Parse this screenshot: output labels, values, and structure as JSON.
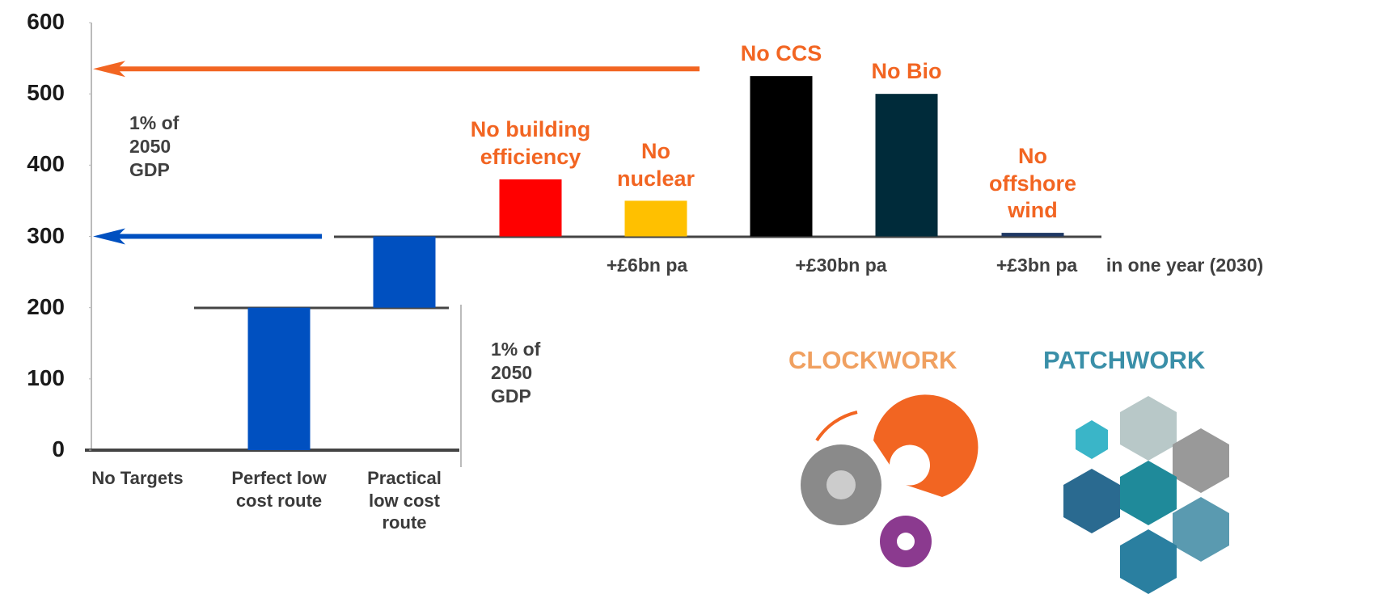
{
  "chart_data": {
    "type": "bar",
    "categories": [
      "No Targets",
      "Perfect low cost route",
      "Practical low cost route",
      "No building efficiency",
      "No nuclear",
      "No CCS",
      "No Bio",
      "No offshore wind"
    ],
    "bases": [
      0,
      0,
      200,
      300,
      300,
      300,
      300,
      300
    ],
    "values": [
      0,
      200,
      100,
      80,
      50,
      225,
      200,
      5
    ],
    "colors": [
      "#0050c0",
      "#0050c0",
      "#0050c0",
      "#ff0000",
      "#ffc000",
      "#000000",
      "#002b3a",
      "#1f3864"
    ],
    "ylim": [
      0,
      600
    ],
    "yticks": [
      0,
      100,
      200,
      300,
      400,
      500,
      600
    ],
    "arrows": [
      {
        "value": 535,
        "color": "#f26522"
      },
      {
        "value": 300,
        "color": "#0050c0"
      }
    ],
    "annotations": [
      "1% of 2050 GDP",
      "1% of 2050 GDP",
      "+£6bn pa",
      "+£30bn pa",
      "+£3bn pa",
      "in one year (2030)"
    ]
  },
  "logos": [
    "CLOCKWORK",
    "PATCHWORK"
  ]
}
